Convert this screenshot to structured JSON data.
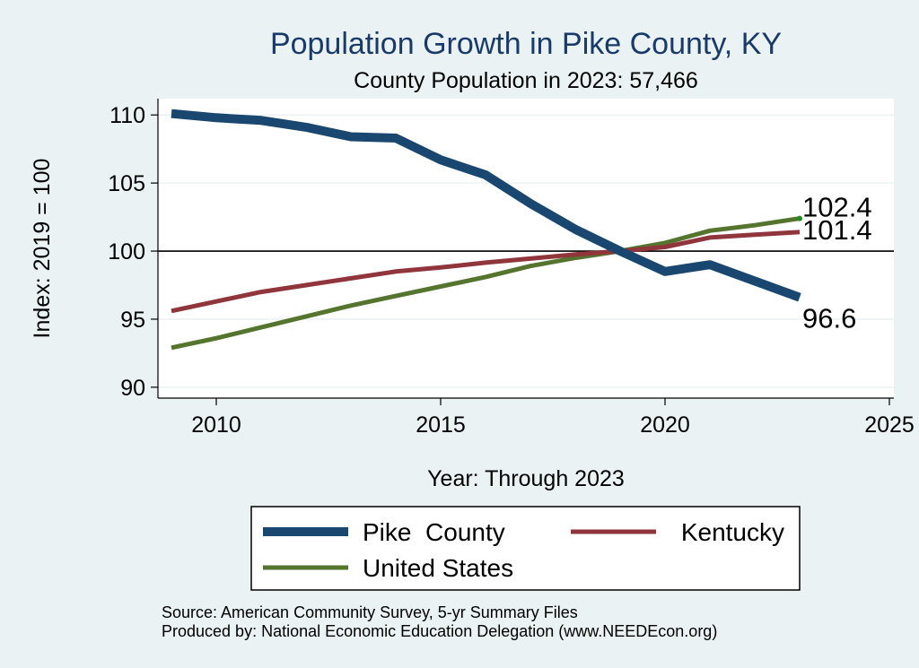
{
  "chart_data": {
    "type": "line",
    "title": "Population Growth in Pike County, KY",
    "subtitle": "County Population in 2023: 57,466",
    "xlabel": "Year: Through 2023",
    "ylabel": "Index: 2019 = 100",
    "xlim": [
      2008.7,
      2025.1
    ],
    "ylim": [
      89.2,
      111.2
    ],
    "xticks": [
      2010,
      2015,
      2020,
      2025
    ],
    "yticks": [
      90,
      95,
      100,
      105,
      110
    ],
    "reference_line": 100,
    "grid": true,
    "x": [
      2009,
      2010,
      2011,
      2012,
      2013,
      2014,
      2015,
      2016,
      2017,
      2018,
      2019,
      2020,
      2021,
      2022,
      2023
    ],
    "series": [
      {
        "name": "Pike  County",
        "color": "#1a476f",
        "values": [
          110.1,
          109.8,
          109.6,
          109.1,
          108.4,
          108.3,
          106.7,
          105.6,
          103.5,
          101.6,
          100.0,
          98.5,
          99.0,
          97.8,
          96.6
        ],
        "end_label": "96.6"
      },
      {
        "name": "Kentucky",
        "color": "#90353b",
        "values": [
          95.6,
          96.3,
          97.0,
          97.5,
          98.0,
          98.5,
          98.8,
          99.15,
          99.45,
          99.75,
          100.0,
          100.3,
          101.0,
          101.2,
          101.4
        ],
        "end_label": "101.4"
      },
      {
        "name": "United States",
        "color": "#55752f",
        "values": [
          92.9,
          93.6,
          94.4,
          95.2,
          96.0,
          96.7,
          97.4,
          98.1,
          98.9,
          99.5,
          100.0,
          100.6,
          101.5,
          101.9,
          102.4
        ],
        "end_label": "102.4"
      }
    ],
    "legend": {
      "placement": "bottom",
      "entries": [
        "Pike  County",
        "Kentucky",
        "United States"
      ]
    },
    "notes": [
      "Source: American Community Survey, 5-yr Summary Files",
      "Produced by: National Economic Education Delegation (www.NEEDEcon.org)"
    ]
  }
}
